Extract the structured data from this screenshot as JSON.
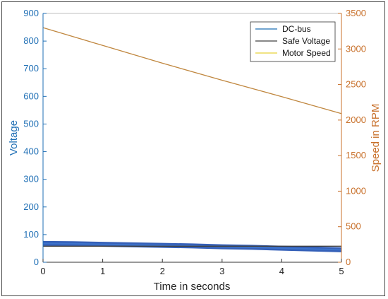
{
  "chart_data": {
    "type": "line",
    "xlabel": "Time in seconds",
    "ylabel_left": "Voltage",
    "ylabel_right": "Speed in RPM",
    "xlim": [
      0,
      5
    ],
    "ylim_left": [
      0,
      900
    ],
    "ylim_right": [
      0,
      3500
    ],
    "x_ticks": [
      "0",
      "1",
      "2",
      "3",
      "4",
      "5"
    ],
    "y_left_ticks": [
      "0",
      "100",
      "200",
      "300",
      "400",
      "500",
      "600",
      "700",
      "800",
      "900"
    ],
    "y_right_ticks": [
      "0",
      "500",
      "1000",
      "1500",
      "2000",
      "2500",
      "3000",
      "3500"
    ],
    "grid": false,
    "legend_position": "top-right",
    "series": [
      {
        "name": "DC-bus",
        "axis": "left",
        "color": "#1f4fb0",
        "x": [
          0,
          0.5,
          1,
          1.5,
          2,
          2.5,
          3,
          3.5,
          4,
          4.5,
          5
        ],
        "y": [
          68,
          67,
          65,
          63,
          61,
          59,
          56,
          54,
          51,
          48,
          45
        ]
      },
      {
        "name": "Safe Voltage",
        "axis": "left",
        "color": "#404040",
        "x": [
          0,
          5
        ],
        "y": [
          58,
          58
        ]
      },
      {
        "name": "Motor Speed",
        "axis": "right",
        "color": "#c0873f",
        "x": [
          0,
          1,
          2,
          3,
          4,
          5
        ],
        "y": [
          3300,
          3050,
          2800,
          2560,
          2330,
          2090
        ]
      }
    ]
  }
}
